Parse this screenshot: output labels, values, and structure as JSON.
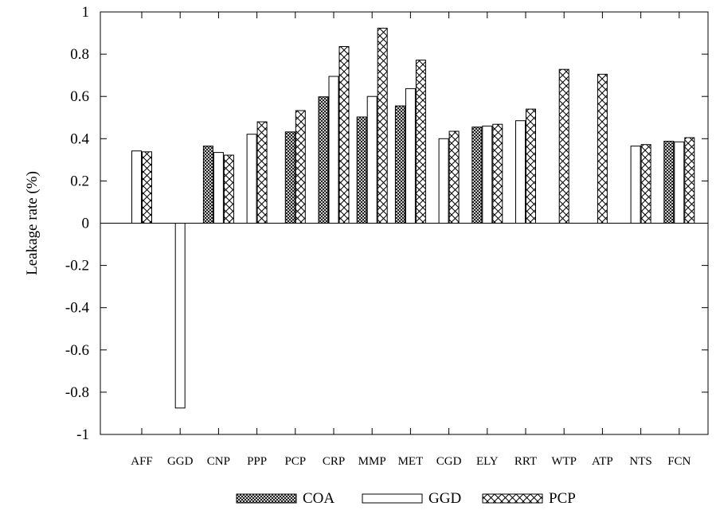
{
  "chart_data": {
    "type": "bar",
    "title": "",
    "xlabel": "",
    "ylabel": "Leakage rate (%)",
    "ylim": [
      -1,
      1
    ],
    "yticks": [
      "-1",
      "-0.8",
      "-0.6",
      "-0.4",
      "-0.2",
      "0",
      "0.2",
      "0.4",
      "0.6",
      "0.8",
      "1"
    ],
    "grid": false,
    "legend_position": "bottom",
    "categories": [
      "AFF",
      "GGD",
      "CNP",
      "PPP",
      "PCP",
      "CRP",
      "MMP",
      "MET",
      "CGD",
      "ELY",
      "RRT",
      "WTP",
      "ATP",
      "NTS",
      "FCN"
    ],
    "series": [
      {
        "name": "COA",
        "pattern": "crosshatch-dense",
        "values": [
          null,
          null,
          0.365,
          null,
          0.432,
          0.598,
          0.503,
          0.555,
          null,
          0.455,
          null,
          null,
          null,
          null,
          0.388
        ]
      },
      {
        "name": "GGD",
        "pattern": "empty",
        "values": [
          0.342,
          -0.875,
          0.335,
          0.421,
          null,
          0.695,
          0.6,
          0.637,
          0.4,
          0.46,
          0.485,
          null,
          null,
          0.365,
          0.385
        ]
      },
      {
        "name": "PCP",
        "pattern": "crosshatch-open",
        "values": [
          0.338,
          null,
          0.322,
          0.48,
          0.533,
          0.836,
          0.923,
          0.772,
          0.435,
          0.468,
          0.54,
          0.728,
          0.705,
          0.372,
          0.405
        ]
      }
    ]
  }
}
